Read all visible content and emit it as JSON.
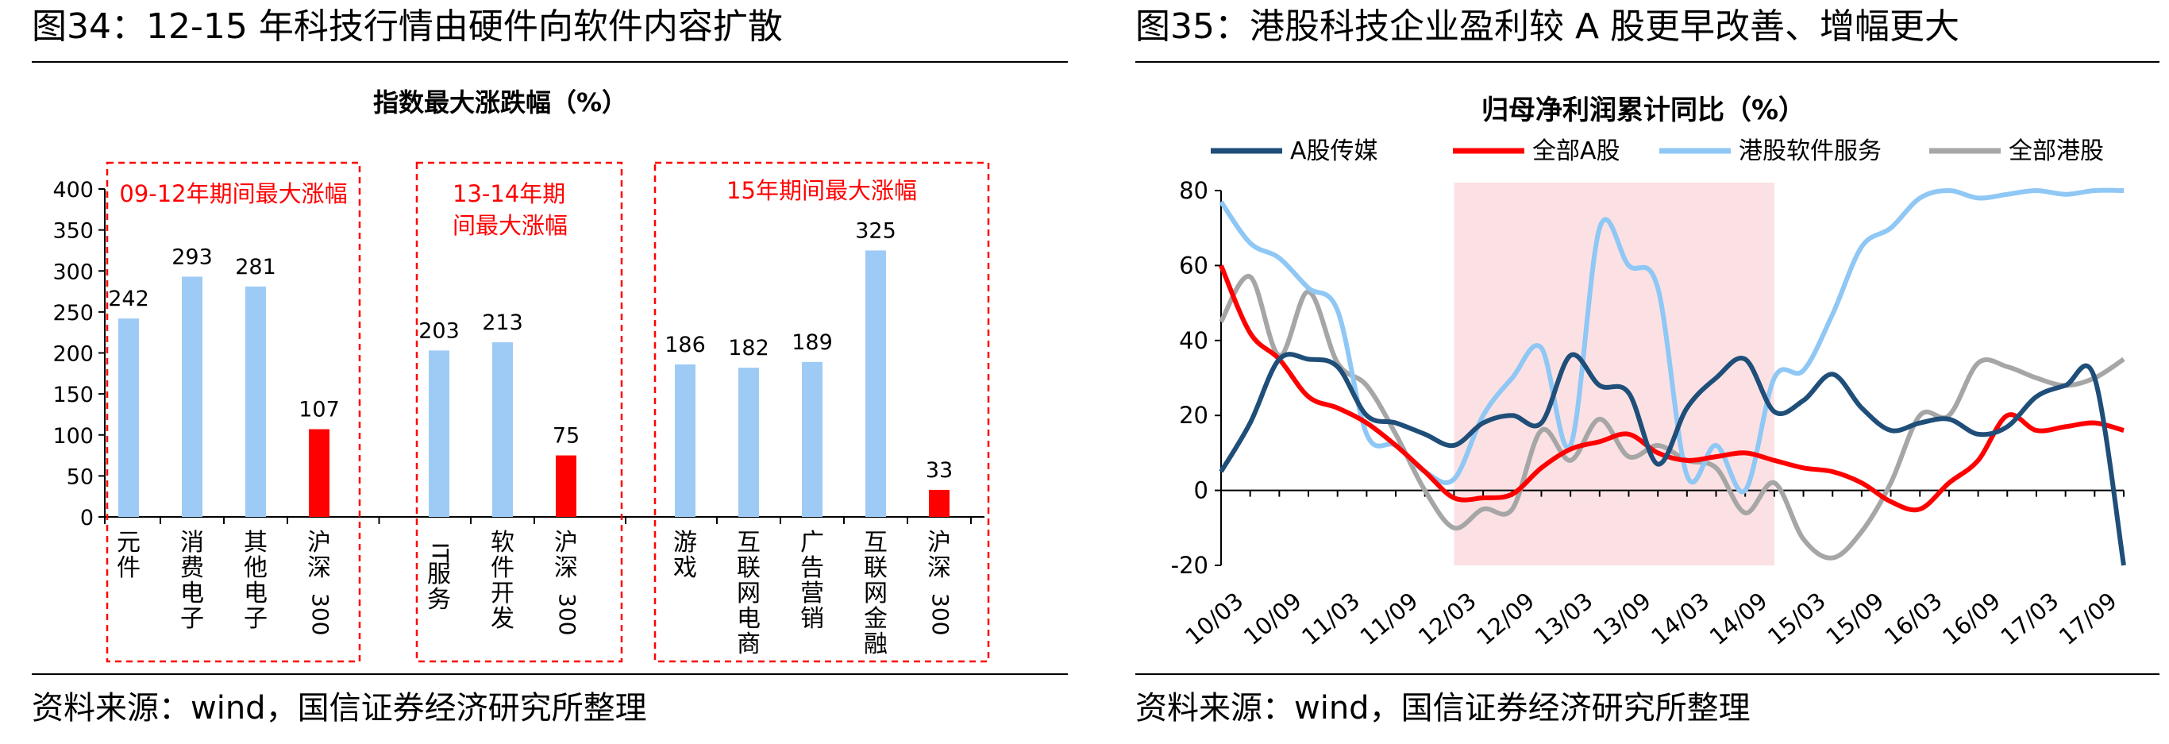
{
  "left": {
    "figure_title": "图34：12-15 年科技行情由硬件向软件内容扩散",
    "source": "资料来源：wind，国信证券经济研究所整理"
  },
  "right": {
    "figure_title": "图35：港股科技企业盈利较 A 股更早改善、增幅更大",
    "source": "资料来源：wind，国信证券经济研究所整理"
  },
  "chart_data": [
    {
      "type": "bar",
      "title": "指数最大涨跌幅（%）",
      "ylim": [
        0,
        400
      ],
      "yticks": [
        0,
        50,
        100,
        150,
        200,
        250,
        300,
        350,
        400
      ],
      "categories": [
        "元件",
        "消费电子",
        "其他电子",
        "沪深300",
        "IT服务",
        "软件开发",
        "沪深300",
        "游戏",
        "互联网电商",
        "广告营销",
        "互联网金融",
        "沪深300"
      ],
      "values": [
        242,
        293,
        281,
        107,
        203,
        213,
        75,
        186,
        182,
        189,
        325,
        33
      ],
      "bar_colors": [
        "#9ecbf5",
        "#9ecbf5",
        "#9ecbf5",
        "#ff0000",
        "#9ecbf5",
        "#9ecbf5",
        "#ff0000",
        "#9ecbf5",
        "#9ecbf5",
        "#9ecbf5",
        "#9ecbf5",
        "#ff0000"
      ],
      "groups": [
        {
          "label": "09-12年期间最大涨幅"
        },
        {
          "label": "13-14年期间最大涨幅"
        },
        {
          "label": "15年期间最大涨幅"
        }
      ],
      "annotation_color": "#ff0000",
      "grid": false
    },
    {
      "type": "line",
      "title": "归母净利润累计同比（%）",
      "ylim": [
        -20,
        80
      ],
      "yticks": [
        -20,
        0,
        20,
        40,
        60,
        80
      ],
      "x_labels": [
        "10/03",
        "10/09",
        "11/03",
        "11/09",
        "12/03",
        "12/09",
        "13/03",
        "13/09",
        "14/03",
        "14/09",
        "15/03",
        "15/09",
        "16/03",
        "16/09",
        "17/03",
        "17/09"
      ],
      "x_quarters": [
        "10/03",
        "10/06",
        "10/09",
        "10/12",
        "11/03",
        "11/06",
        "11/09",
        "11/12",
        "12/03",
        "12/06",
        "12/09",
        "12/12",
        "13/03",
        "13/06",
        "13/09",
        "13/12",
        "14/03",
        "14/06",
        "14/09",
        "14/12",
        "15/03",
        "15/06",
        "15/09",
        "15/12",
        "16/03",
        "16/06",
        "16/09",
        "16/12",
        "17/03",
        "17/06",
        "17/09",
        "17/12"
      ],
      "highlight": {
        "from": "12/03",
        "to": "14/12",
        "color": "#fbe1e3"
      },
      "legend_position": "top",
      "grid": false,
      "series": [
        {
          "name": "A股传媒",
          "color": "#1f4e79",
          "values": [
            5,
            18,
            35,
            35,
            33,
            20,
            18,
            15,
            12,
            18,
            20,
            18,
            36,
            28,
            26,
            7,
            22,
            30,
            35,
            21,
            24,
            31,
            22,
            16,
            18,
            19,
            15,
            17,
            25,
            28,
            30,
            -20
          ]
        },
        {
          "name": "全部A股",
          "color": "#ff0000",
          "values": [
            60,
            42,
            35,
            25,
            22,
            18,
            12,
            5,
            -2,
            -2,
            -1,
            6,
            11,
            13,
            15,
            10,
            8,
            9,
            10,
            8,
            6,
            5,
            2,
            -3,
            -5,
            2,
            8,
            20,
            16,
            17,
            18,
            16
          ]
        },
        {
          "name": "港股软件服务",
          "color": "#8fc7f5",
          "values": [
            77,
            66,
            62,
            54,
            48,
            15,
            12,
            5,
            3,
            20,
            30,
            38,
            12,
            70,
            60,
            54,
            4,
            12,
            0,
            30,
            32,
            47,
            65,
            70,
            78,
            80,
            78,
            79,
            80,
            79,
            80,
            80
          ]
        },
        {
          "name": "全部港股",
          "color": "#a6a6a6",
          "values": [
            45,
            57,
            36,
            53,
            34,
            28,
            15,
            0,
            -10,
            -5,
            -5,
            16,
            8,
            19,
            9,
            12,
            8,
            6,
            -6,
            2,
            -13,
            -18,
            -11,
            2,
            20,
            20,
            34,
            33,
            30,
            28,
            30,
            35
          ]
        }
      ]
    }
  ]
}
